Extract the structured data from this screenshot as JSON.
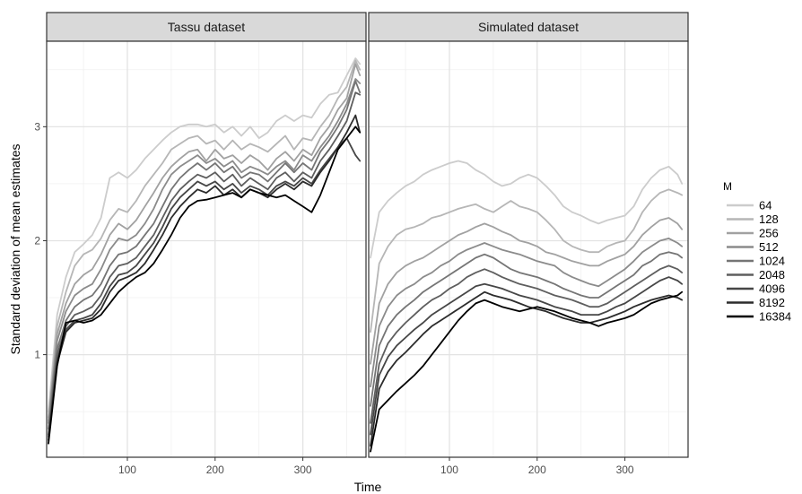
{
  "chart_data": {
    "type": "line",
    "xlabel": "Time",
    "ylabel": "Standard deviation of mean estimates",
    "xlim": [
      8,
      372
    ],
    "ylim": [
      0.1,
      3.75
    ],
    "x_ticks": [
      100,
      200,
      300
    ],
    "x_tick_labels": [
      "100",
      "200",
      "300"
    ],
    "y_ticks": [
      1,
      2,
      3
    ],
    "y_tick_labels": [
      "1",
      "2",
      "3"
    ],
    "grid": true,
    "legend": {
      "title": "M",
      "position": "right",
      "entries": [
        "64",
        "128",
        "256",
        "512",
        "1024",
        "2048",
        "4096",
        "8192",
        "16384"
      ],
      "colors": [
        "#cccccc",
        "#b6b6b6",
        "#a1a1a1",
        "#8b8b8b",
        "#757575",
        "#5e5e5e",
        "#464646",
        "#2c2c2c",
        "#000000"
      ]
    },
    "x": [
      10,
      20,
      30,
      40,
      50,
      60,
      70,
      80,
      90,
      100,
      110,
      120,
      130,
      140,
      150,
      160,
      170,
      180,
      190,
      200,
      210,
      220,
      230,
      240,
      250,
      260,
      270,
      280,
      290,
      300,
      310,
      320,
      330,
      340,
      350,
      360,
      365
    ],
    "panels": [
      {
        "strip": "Tassu dataset",
        "series": [
          {
            "name": "64",
            "values": [
              0.5,
              1.35,
              1.68,
              1.9,
              1.97,
              2.05,
              2.2,
              2.55,
              2.6,
              2.55,
              2.62,
              2.72,
              2.8,
              2.88,
              2.95,
              3.0,
              3.02,
              3.02,
              3.0,
              3.02,
              2.95,
              3.0,
              2.92,
              3.0,
              2.9,
              2.95,
              3.05,
              3.1,
              3.05,
              3.1,
              3.08,
              3.2,
              3.28,
              3.3,
              3.45,
              3.6,
              3.55
            ]
          },
          {
            "name": "128",
            "values": [
              0.45,
              1.25,
              1.55,
              1.78,
              1.88,
              1.92,
              2.02,
              2.18,
              2.28,
              2.25,
              2.35,
              2.48,
              2.58,
              2.68,
              2.8,
              2.85,
              2.9,
              2.92,
              2.85,
              2.88,
              2.8,
              2.88,
              2.8,
              2.85,
              2.82,
              2.78,
              2.85,
              2.92,
              2.8,
              2.9,
              2.88,
              3.0,
              3.1,
              3.25,
              3.35,
              3.58,
              3.5
            ]
          },
          {
            "name": "256",
            "values": [
              0.42,
              1.18,
              1.45,
              1.62,
              1.7,
              1.75,
              1.88,
              2.05,
              2.15,
              2.1,
              2.18,
              2.3,
              2.42,
              2.55,
              2.65,
              2.72,
              2.78,
              2.8,
              2.7,
              2.8,
              2.72,
              2.75,
              2.68,
              2.75,
              2.7,
              2.62,
              2.72,
              2.78,
              2.7,
              2.8,
              2.75,
              2.9,
              3.0,
              3.15,
              3.25,
              3.55,
              3.45
            ]
          },
          {
            "name": "512",
            "values": [
              0.4,
              1.12,
              1.38,
              1.52,
              1.58,
              1.62,
              1.75,
              1.92,
              2.02,
              2.0,
              2.05,
              2.15,
              2.28,
              2.45,
              2.58,
              2.65,
              2.7,
              2.75,
              2.68,
              2.72,
              2.65,
              2.7,
              2.6,
              2.65,
              2.62,
              2.58,
              2.65,
              2.7,
              2.62,
              2.75,
              2.7,
              2.82,
              2.92,
              3.05,
              3.2,
              3.42,
              3.38
            ]
          },
          {
            "name": "1024",
            "values": [
              0.35,
              1.05,
              1.3,
              1.42,
              1.48,
              1.52,
              1.62,
              1.78,
              1.88,
              1.9,
              1.95,
              2.05,
              2.15,
              2.3,
              2.45,
              2.55,
              2.62,
              2.68,
              2.62,
              2.68,
              2.6,
              2.65,
              2.55,
              2.6,
              2.58,
              2.52,
              2.6,
              2.68,
              2.6,
              2.68,
              2.62,
              2.78,
              2.88,
              3.0,
              3.15,
              3.4,
              3.3
            ]
          },
          {
            "name": "2048",
            "values": [
              0.3,
              1.0,
              1.25,
              1.35,
              1.38,
              1.42,
              1.52,
              1.68,
              1.78,
              1.8,
              1.85,
              1.95,
              2.05,
              2.2,
              2.35,
              2.45,
              2.52,
              2.58,
              2.55,
              2.6,
              2.52,
              2.58,
              2.48,
              2.55,
              2.5,
              2.45,
              2.55,
              2.6,
              2.52,
              2.6,
              2.55,
              2.7,
              2.8,
              2.92,
              3.05,
              3.3,
              3.28
            ]
          },
          {
            "name": "4096",
            "values": [
              0.28,
              0.95,
              1.22,
              1.3,
              1.32,
              1.35,
              1.45,
              1.6,
              1.7,
              1.72,
              1.78,
              1.88,
              1.98,
              2.12,
              2.28,
              2.38,
              2.45,
              2.52,
              2.48,
              2.52,
              2.45,
              2.5,
              2.42,
              2.48,
              2.45,
              2.4,
              2.48,
              2.52,
              2.48,
              2.55,
              2.5,
              2.62,
              2.72,
              2.82,
              2.9,
              2.75,
              2.7
            ]
          },
          {
            "name": "8192",
            "values": [
              0.25,
              0.92,
              1.2,
              1.28,
              1.3,
              1.32,
              1.4,
              1.55,
              1.65,
              1.68,
              1.72,
              1.8,
              1.92,
              2.05,
              2.2,
              2.3,
              2.38,
              2.45,
              2.42,
              2.48,
              2.4,
              2.45,
              2.38,
              2.45,
              2.42,
              2.38,
              2.45,
              2.5,
              2.45,
              2.52,
              2.48,
              2.6,
              2.7,
              2.82,
              2.95,
              3.1,
              2.95
            ]
          },
          {
            "name": "16384",
            "values": [
              0.22,
              0.9,
              1.28,
              1.3,
              1.28,
              1.3,
              1.35,
              1.45,
              1.55,
              1.62,
              1.68,
              1.72,
              1.8,
              1.92,
              2.05,
              2.2,
              2.3,
              2.35,
              2.36,
              2.38,
              2.4,
              2.42,
              2.38,
              2.45,
              2.42,
              2.4,
              2.38,
              2.4,
              2.35,
              2.3,
              2.25,
              2.4,
              2.6,
              2.8,
              2.9,
              3.0,
              2.95
            ]
          }
        ]
      },
      {
        "strip": "Simulated dataset",
        "series": [
          {
            "name": "64",
            "values": [
              1.85,
              2.25,
              2.35,
              2.42,
              2.48,
              2.52,
              2.58,
              2.62,
              2.65,
              2.68,
              2.7,
              2.68,
              2.62,
              2.58,
              2.52,
              2.48,
              2.5,
              2.55,
              2.58,
              2.55,
              2.48,
              2.4,
              2.3,
              2.25,
              2.22,
              2.18,
              2.15,
              2.18,
              2.2,
              2.22,
              2.3,
              2.45,
              2.55,
              2.62,
              2.65,
              2.58,
              2.5
            ]
          },
          {
            "name": "128",
            "values": [
              1.2,
              1.8,
              1.95,
              2.05,
              2.1,
              2.12,
              2.15,
              2.2,
              2.22,
              2.25,
              2.28,
              2.3,
              2.32,
              2.28,
              2.25,
              2.3,
              2.35,
              2.3,
              2.28,
              2.25,
              2.18,
              2.1,
              2.0,
              1.95,
              1.92,
              1.9,
              1.9,
              1.95,
              1.98,
              2.0,
              2.1,
              2.25,
              2.35,
              2.42,
              2.45,
              2.42,
              2.4
            ]
          },
          {
            "name": "256",
            "values": [
              0.92,
              1.45,
              1.62,
              1.72,
              1.78,
              1.82,
              1.85,
              1.9,
              1.95,
              2.0,
              2.05,
              2.08,
              2.12,
              2.15,
              2.12,
              2.08,
              2.05,
              2.0,
              1.98,
              1.95,
              1.9,
              1.88,
              1.85,
              1.82,
              1.8,
              1.78,
              1.78,
              1.82,
              1.85,
              1.88,
              1.95,
              2.05,
              2.12,
              2.18,
              2.2,
              2.15,
              2.1
            ]
          },
          {
            "name": "512",
            "values": [
              0.72,
              1.25,
              1.42,
              1.52,
              1.58,
              1.62,
              1.68,
              1.72,
              1.78,
              1.82,
              1.88,
              1.92,
              1.95,
              1.98,
              1.95,
              1.92,
              1.9,
              1.88,
              1.85,
              1.82,
              1.8,
              1.78,
              1.72,
              1.68,
              1.65,
              1.62,
              1.6,
              1.65,
              1.7,
              1.75,
              1.82,
              1.9,
              1.95,
              2.0,
              2.02,
              1.98,
              1.95
            ]
          },
          {
            "name": "1024",
            "values": [
              0.55,
              1.08,
              1.25,
              1.35,
              1.42,
              1.48,
              1.55,
              1.6,
              1.65,
              1.7,
              1.75,
              1.8,
              1.85,
              1.88,
              1.85,
              1.8,
              1.75,
              1.72,
              1.7,
              1.68,
              1.65,
              1.62,
              1.58,
              1.55,
              1.52,
              1.5,
              1.5,
              1.55,
              1.6,
              1.65,
              1.7,
              1.78,
              1.82,
              1.88,
              1.9,
              1.88,
              1.85
            ]
          },
          {
            "name": "2048",
            "values": [
              0.4,
              0.92,
              1.1,
              1.2,
              1.28,
              1.35,
              1.42,
              1.48,
              1.52,
              1.58,
              1.62,
              1.68,
              1.72,
              1.75,
              1.72,
              1.68,
              1.65,
              1.62,
              1.6,
              1.58,
              1.55,
              1.52,
              1.5,
              1.48,
              1.45,
              1.42,
              1.42,
              1.45,
              1.5,
              1.55,
              1.6,
              1.65,
              1.7,
              1.75,
              1.78,
              1.75,
              1.72
            ]
          },
          {
            "name": "4096",
            "values": [
              0.3,
              0.82,
              0.98,
              1.08,
              1.15,
              1.22,
              1.28,
              1.35,
              1.4,
              1.45,
              1.5,
              1.55,
              1.6,
              1.62,
              1.6,
              1.58,
              1.55,
              1.52,
              1.5,
              1.48,
              1.45,
              1.42,
              1.4,
              1.38,
              1.35,
              1.35,
              1.35,
              1.38,
              1.42,
              1.45,
              1.5,
              1.55,
              1.6,
              1.65,
              1.68,
              1.65,
              1.62
            ]
          },
          {
            "name": "8192",
            "values": [
              0.2,
              0.7,
              0.85,
              0.95,
              1.02,
              1.1,
              1.18,
              1.25,
              1.3,
              1.35,
              1.4,
              1.45,
              1.5,
              1.55,
              1.52,
              1.5,
              1.48,
              1.45,
              1.42,
              1.4,
              1.38,
              1.35,
              1.32,
              1.3,
              1.28,
              1.28,
              1.3,
              1.32,
              1.35,
              1.38,
              1.42,
              1.45,
              1.48,
              1.5,
              1.52,
              1.5,
              1.48
            ]
          },
          {
            "name": "16384",
            "values": [
              0.15,
              0.52,
              0.6,
              0.68,
              0.75,
              0.82,
              0.9,
              1.0,
              1.1,
              1.2,
              1.3,
              1.38,
              1.45,
              1.48,
              1.45,
              1.42,
              1.4,
              1.38,
              1.4,
              1.42,
              1.4,
              1.38,
              1.35,
              1.32,
              1.3,
              1.28,
              1.25,
              1.28,
              1.3,
              1.32,
              1.35,
              1.4,
              1.45,
              1.48,
              1.5,
              1.52,
              1.55
            ]
          }
        ]
      }
    ]
  }
}
